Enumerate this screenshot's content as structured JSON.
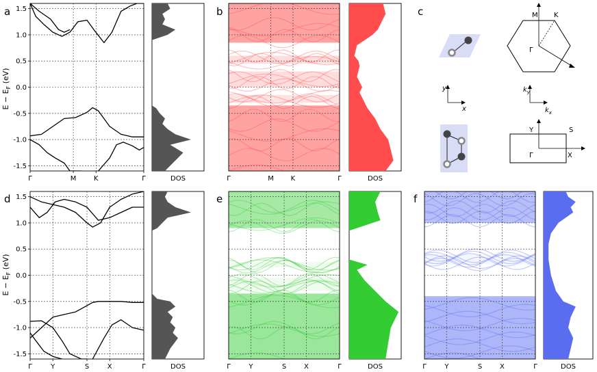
{
  "panel_labels": {
    "a": "a",
    "b": "b",
    "c": "c",
    "d": "d",
    "e": "e",
    "f": "f"
  },
  "ylabel": "E − E",
  "ylabel_sub": "F",
  "ylabel_unit": " (eV)",
  "dos_label": "DOS",
  "colors": {
    "gray": "#555555",
    "red": "#ff4d4d",
    "green": "#33cc33",
    "blue": "#5a6cf0",
    "lattice": "#d8dcf5"
  },
  "c_labels": {
    "hex_M": "M",
    "hex_K": "K",
    "hex_G": "Γ",
    "hex_axes_y": "y",
    "hex_axes_x": "x",
    "bz_axes_ky": "k",
    "bz_axes_ky_sub": "y",
    "bz_axes_kx": "k",
    "bz_axes_kx_sub": "x",
    "rect_Y": "Y",
    "rect_S": "S",
    "rect_G": "Γ",
    "rect_X": "X"
  },
  "chart_data": [
    {
      "id": "a",
      "type": "line",
      "title": "",
      "xticks": [
        "Γ",
        "M",
        "K",
        "Γ"
      ],
      "ylim": [
        -1.6,
        1.6
      ],
      "yticks": [
        "-1.5",
        "-1.0",
        "-0.5",
        "0.0",
        "0.5",
        "1.0",
        "1.5"
      ],
      "grid": true,
      "series": [
        {
          "x": [
            0,
            0.08,
            0.18,
            0.25,
            0.3,
            0.35
          ],
          "y": [
            1.6,
            1.45,
            1.3,
            1.1,
            1.05,
            1.1
          ]
        },
        {
          "x": [
            0,
            0.05,
            0.12,
            0.2,
            0.28,
            0.35,
            0.42,
            0.5,
            0.56,
            0.65,
            0.72,
            0.8,
            0.88,
            0.94,
            1.0
          ],
          "y": [
            1.6,
            1.35,
            1.2,
            1.05,
            0.97,
            1.05,
            1.25,
            1.28,
            1.1,
            0.85,
            1.05,
            1.45,
            1.55,
            1.6,
            1.6
          ]
        },
        {
          "x": [
            0,
            0.1,
            0.2,
            0.3,
            0.4,
            0.5,
            0.55,
            0.6,
            0.7,
            0.8,
            0.9,
            1.0
          ],
          "y": [
            -0.93,
            -0.9,
            -0.75,
            -0.6,
            -0.58,
            -0.48,
            -0.39,
            -0.45,
            -0.75,
            -0.9,
            -0.95,
            -0.95
          ]
        },
        {
          "x": [
            0,
            0.08,
            0.15,
            0.22,
            0.3,
            0.35,
            0.45
          ],
          "y": [
            -1.0,
            -1.1,
            -1.25,
            -1.35,
            -1.45,
            -1.6,
            -1.6
          ]
        },
        {
          "x": [
            0.6,
            0.7,
            0.76,
            0.82,
            0.9,
            0.96,
            1.0
          ],
          "y": [
            -1.6,
            -1.35,
            -1.1,
            -1.05,
            -1.12,
            -1.2,
            -1.15
          ]
        }
      ]
    },
    {
      "id": "a-dos",
      "type": "area",
      "xlabel": "DOS",
      "color": "#555555",
      "y": [
        -1.6,
        -1.4,
        -1.25,
        -1.1,
        -1.0,
        -0.9,
        -0.8,
        -0.7,
        -0.6,
        -0.5,
        -0.4,
        -0.35,
        -0.2,
        0.0,
        0.5,
        0.9,
        0.95,
        1.0,
        1.1,
        1.2,
        1.3,
        1.4,
        1.5,
        1.6
      ],
      "x": [
        0.25,
        0.45,
        0.6,
        0.35,
        0.75,
        0.45,
        0.3,
        0.2,
        0.25,
        0.15,
        0.08,
        0,
        0,
        0,
        0,
        0,
        0.15,
        0.3,
        0.45,
        0.2,
        0.25,
        0.2,
        0.35,
        0.3
      ]
    },
    {
      "id": "b",
      "type": "heatmap",
      "title": "",
      "xticks": [
        "Γ",
        "M",
        "K",
        "Γ"
      ],
      "bands": [
        [
          -1.6,
          -0.35,
          0.95
        ],
        [
          -0.3,
          -0.15,
          0.3
        ],
        [
          0.0,
          0.3,
          0.35
        ],
        [
          0.45,
          0.6,
          0.35
        ],
        [
          0.85,
          1.6,
          0.95
        ]
      ]
    },
    {
      "id": "b-dos",
      "type": "area",
      "xlabel": "DOS",
      "color": "#ff4d4d",
      "y": [
        -1.6,
        -1.4,
        -1.2,
        -1.0,
        -0.8,
        -0.6,
        -0.4,
        -0.3,
        -0.1,
        0.0,
        0.2,
        0.4,
        0.5,
        0.6,
        0.8,
        0.9,
        1.0,
        1.1,
        1.2,
        1.4,
        1.6
      ],
      "x": [
        0.7,
        0.85,
        0.8,
        0.75,
        0.6,
        0.5,
        0.35,
        0.3,
        0.2,
        0.25,
        0.15,
        0.2,
        0.18,
        0.1,
        0.15,
        0.3,
        0.45,
        0.55,
        0.6,
        0.7,
        0.65
      ]
    },
    {
      "id": "d",
      "type": "line",
      "title": "",
      "xticks": [
        "Γ",
        "Y",
        "S",
        "X",
        "Γ"
      ],
      "ylim": [
        -1.6,
        1.6
      ],
      "yticks": [
        "-1.5",
        "-1.0",
        "-0.5",
        "0.0",
        "0.5",
        "1.0",
        "1.5"
      ],
      "grid": true,
      "series": [
        {
          "x": [
            0,
            0.1,
            0.2,
            0.3,
            0.4,
            0.5,
            0.55,
            0.62,
            0.7,
            0.8,
            0.9,
            1.0
          ],
          "y": [
            1.5,
            1.4,
            1.35,
            1.3,
            1.2,
            1.0,
            0.92,
            1.0,
            1.3,
            1.45,
            1.55,
            1.6
          ]
        },
        {
          "x": [
            0,
            0.08,
            0.15,
            0.22,
            0.3,
            0.4,
            0.5,
            0.6,
            0.7,
            0.8,
            0.9,
            1.0
          ],
          "y": [
            1.3,
            1.1,
            1.2,
            1.4,
            1.45,
            1.4,
            1.3,
            1.05,
            1.1,
            1.2,
            1.3,
            1.3
          ]
        },
        {
          "x": [
            0,
            0.1,
            0.2,
            0.3,
            0.4,
            0.5,
            0.55,
            0.6,
            0.7,
            0.8,
            0.9,
            1.0
          ],
          "y": [
            -1.2,
            -1.0,
            -0.8,
            -0.75,
            -0.7,
            -0.58,
            -0.52,
            -0.5,
            -0.5,
            -0.5,
            -0.52,
            -0.52
          ]
        },
        {
          "x": [
            0,
            0.1,
            0.2,
            0.28,
            0.35,
            0.45,
            0.5
          ],
          "y": [
            -0.88,
            -0.87,
            -1.0,
            -1.25,
            -1.5,
            -1.6,
            -1.6
          ]
        },
        {
          "x": [
            0.55,
            0.65,
            0.72,
            0.8,
            0.9,
            1.0
          ],
          "y": [
            -1.6,
            -1.2,
            -0.95,
            -0.85,
            -1.0,
            -1.05
          ]
        },
        {
          "x": [
            0,
            0.05,
            0.12,
            0.2,
            0.28
          ],
          "y": [
            -1.1,
            -1.25,
            -1.45,
            -1.55,
            -1.6
          ]
        }
      ]
    },
    {
      "id": "d-dos",
      "type": "area",
      "xlabel": "DOS",
      "color": "#555555",
      "y": [
        -1.6,
        -1.4,
        -1.2,
        -1.1,
        -1.0,
        -0.9,
        -0.8,
        -0.7,
        -0.6,
        -0.5,
        -0.45,
        -0.35,
        0.0,
        0.3,
        0.85,
        0.9,
        1.0,
        1.1,
        1.2,
        1.3,
        1.4,
        1.5,
        1.6
      ],
      "x": [
        0.25,
        0.35,
        0.5,
        0.4,
        0.45,
        0.35,
        0.4,
        0.3,
        0.45,
        0.35,
        0.1,
        0,
        0,
        0,
        0,
        0.1,
        0.2,
        0.3,
        0.75,
        0.45,
        0.3,
        0.25,
        0.3
      ]
    },
    {
      "id": "e",
      "type": "heatmap",
      "title": "",
      "xticks": [
        "Γ",
        "Y",
        "S",
        "X",
        "Γ"
      ],
      "bands": [
        [
          -1.6,
          -0.35,
          0.9
        ],
        [
          -0.3,
          -0.05,
          0.15
        ],
        [
          0.15,
          0.25,
          0.15
        ],
        [
          0.9,
          1.6,
          0.8
        ]
      ]
    },
    {
      "id": "e-dos",
      "type": "area",
      "xlabel": "DOS",
      "color": "#33cc33",
      "y": [
        -1.6,
        -1.3,
        -1.0,
        -0.7,
        -0.5,
        -0.3,
        -0.1,
        0.1,
        0.2,
        0.3,
        0.85,
        0.95,
        1.05,
        1.2,
        1.4,
        1.6
      ],
      "x": [
        0.7,
        0.75,
        0.8,
        0.95,
        0.7,
        0.5,
        0.3,
        0.15,
        0.35,
        0,
        0,
        0.3,
        0.6,
        0.55,
        0.5,
        0.6
      ]
    },
    {
      "id": "f",
      "type": "heatmap",
      "title": "",
      "xticks": [
        "Γ",
        "Y",
        "S",
        "X",
        "Γ"
      ],
      "bands": [
        [
          -1.6,
          -0.4,
          0.9
        ],
        [
          0.2,
          0.4,
          0.1
        ],
        [
          1.0,
          1.6,
          0.8
        ]
      ]
    },
    {
      "id": "f-dos",
      "type": "area",
      "xlabel": "DOS",
      "color": "#5a6cf0",
      "y": [
        -1.6,
        -1.4,
        -1.2,
        -1.0,
        -0.8,
        -0.6,
        -0.5,
        -0.3,
        0.0,
        0.3,
        0.6,
        0.8,
        1.0,
        1.1,
        1.2,
        1.3,
        1.4,
        1.5,
        1.6
      ],
      "x": [
        0.5,
        0.55,
        0.6,
        0.5,
        0.55,
        0.65,
        0.4,
        0.25,
        0.15,
        0.1,
        0.1,
        0.15,
        0.3,
        0.45,
        0.6,
        0.55,
        0.65,
        0.5,
        0.45
      ]
    }
  ]
}
